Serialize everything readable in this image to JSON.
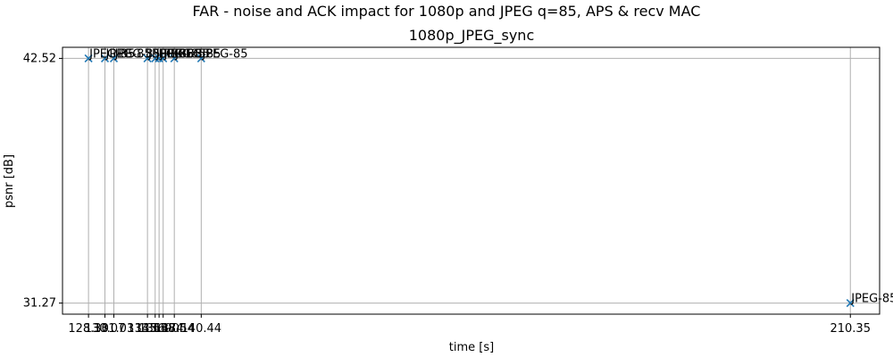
{
  "suptitle": "FAR - noise and ACK impact for 1080p and JPEG q=85, APS & recv MAC",
  "chart_data": {
    "type": "scatter",
    "title": "1080p_JPEG_sync",
    "xlabel": "time [s]",
    "ylabel": "psnr [dB]",
    "marker": "x",
    "color": "#1f77b4",
    "grid": true,
    "xlim": [
      125.5,
      213.5
    ],
    "ylim": [
      30.76,
      43.03
    ],
    "xticks": [
      "128.30",
      "130.07",
      "131.03",
      "134.65",
      "135.48",
      "135.90",
      "136.34",
      "137.54",
      "140.44",
      "210.35"
    ],
    "yticks": [
      "31.27",
      "42.52"
    ],
    "points": [
      {
        "x": 128.3,
        "y": 42.52,
        "label": "JPEG-85"
      },
      {
        "x": 130.07,
        "y": 42.52,
        "label": "JPEG-85"
      },
      {
        "x": 131.03,
        "y": 42.52,
        "label": "JPEG-85"
      },
      {
        "x": 134.65,
        "y": 42.52,
        "label": "JPEG-85"
      },
      {
        "x": 135.48,
        "y": 42.52,
        "label": "JPEG-85"
      },
      {
        "x": 135.9,
        "y": 42.52,
        "label": "JPEG-85"
      },
      {
        "x": 136.34,
        "y": 42.52,
        "label": "JPEG-85"
      },
      {
        "x": 137.54,
        "y": 42.52,
        "label": "JPEG-85"
      },
      {
        "x": 140.44,
        "y": 42.52,
        "label": "JPEG-85"
      },
      {
        "x": 210.35,
        "y": 31.27,
        "label": "JPEG-85"
      }
    ]
  }
}
